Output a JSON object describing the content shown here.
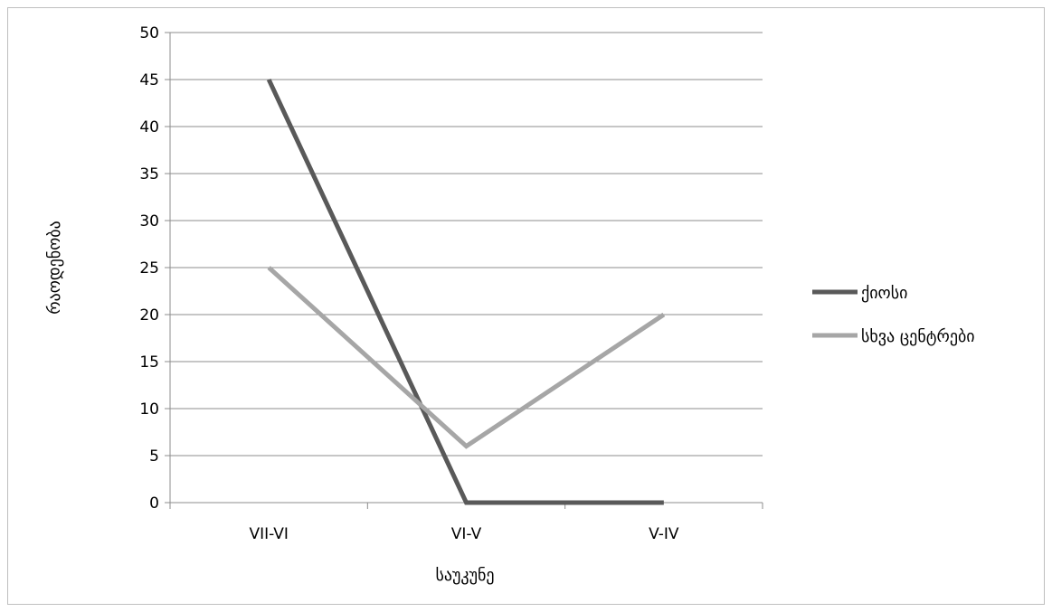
{
  "chart_data": {
    "type": "line",
    "title": "",
    "xlabel": "საუკუნე",
    "ylabel": "რაოდენობა",
    "categories": [
      "VII-VI",
      "VI-V",
      "V-IV"
    ],
    "ylim": [
      0,
      50
    ],
    "ytick_step": 5,
    "grid": true,
    "legend_position": "right",
    "series": [
      {
        "name": "ქიოსი",
        "values": [
          45,
          0,
          0
        ],
        "color": "#595959"
      },
      {
        "name": "სხვა ცენტრები",
        "values": [
          25,
          6,
          20
        ],
        "color": "#a6a6a6"
      }
    ]
  }
}
